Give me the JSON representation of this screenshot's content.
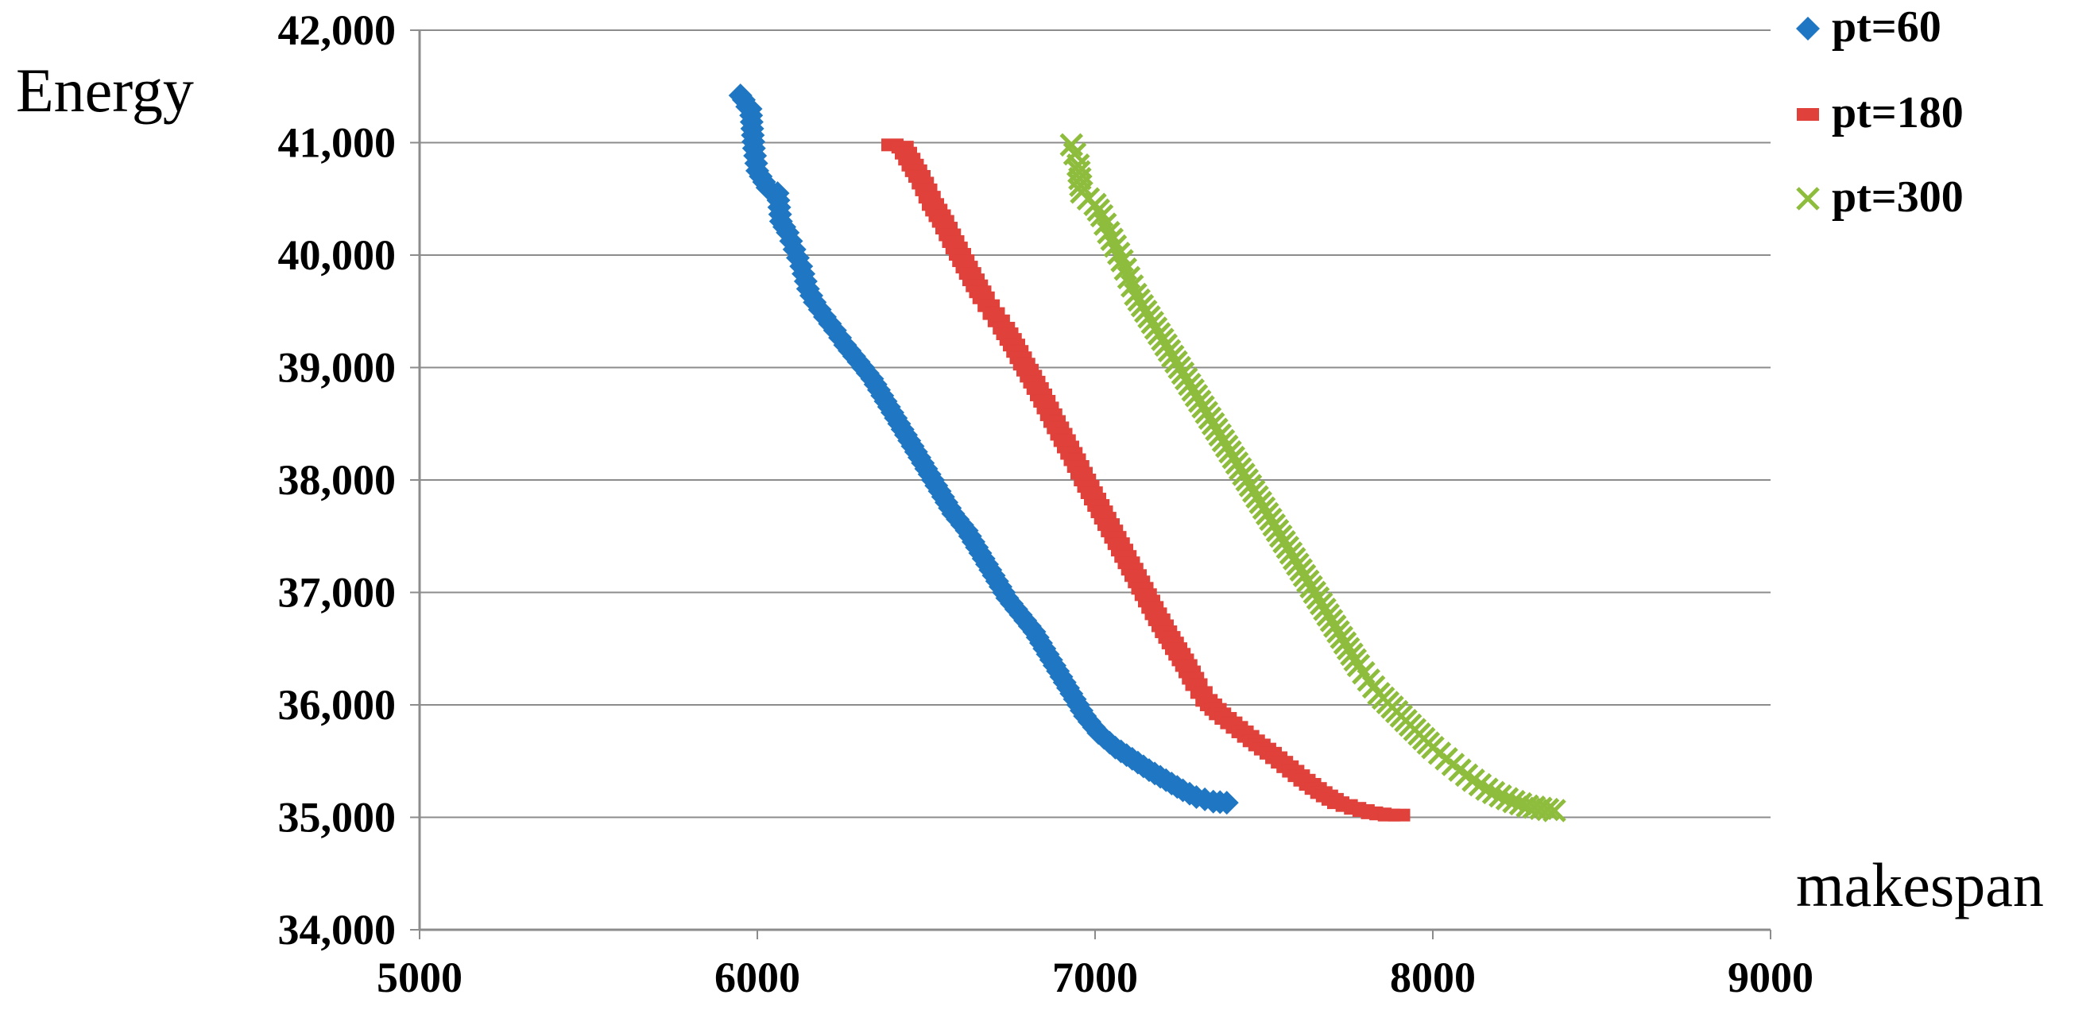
{
  "chart_data": {
    "type": "scatter",
    "xlabel": "makespan",
    "ylabel": "Energy",
    "xlim": [
      5000,
      9000
    ],
    "ylim": [
      34000,
      42000
    ],
    "x_ticks": [
      "5000",
      "6000",
      "7000",
      "8000",
      "9000"
    ],
    "y_ticks": [
      "34,000",
      "35,000",
      "36,000",
      "37,000",
      "38,000",
      "39,000",
      "40,000",
      "41,000",
      "42,000"
    ],
    "grid": "horizontal",
    "legend_position": "top-right",
    "series": [
      {
        "name": "pt=60",
        "marker": "diamond",
        "color": "#1f77c4",
        "points": [
          [
            5950,
            41420
          ],
          [
            5960,
            41380
          ],
          [
            5970,
            41320
          ],
          [
            5980,
            41300
          ],
          [
            5990,
            40950
          ],
          [
            6000,
            40750
          ],
          [
            6010,
            40700
          ],
          [
            6030,
            40600
          ],
          [
            6060,
            40550
          ],
          [
            6070,
            40300
          ],
          [
            6090,
            40200
          ],
          [
            6110,
            40050
          ],
          [
            6130,
            39900
          ],
          [
            6150,
            39700
          ],
          [
            6170,
            39580
          ],
          [
            6200,
            39450
          ],
          [
            6230,
            39330
          ],
          [
            6260,
            39200
          ],
          [
            6300,
            39050
          ],
          [
            6340,
            38900
          ],
          [
            6380,
            38700
          ],
          [
            6420,
            38500
          ],
          [
            6460,
            38300
          ],
          [
            6500,
            38100
          ],
          [
            6540,
            37900
          ],
          [
            6580,
            37700
          ],
          [
            6620,
            37550
          ],
          [
            6660,
            37350
          ],
          [
            6700,
            37150
          ],
          [
            6740,
            36950
          ],
          [
            6780,
            36800
          ],
          [
            6820,
            36650
          ],
          [
            6860,
            36450
          ],
          [
            6900,
            36250
          ],
          [
            6940,
            36050
          ],
          [
            6970,
            35900
          ],
          [
            7010,
            35750
          ],
          [
            7060,
            35620
          ],
          [
            7110,
            35520
          ],
          [
            7160,
            35420
          ],
          [
            7210,
            35330
          ],
          [
            7260,
            35240
          ],
          [
            7300,
            35180
          ],
          [
            7350,
            35140
          ],
          [
            7390,
            35130
          ]
        ]
      },
      {
        "name": "pt=180",
        "marker": "dash",
        "color": "#e0413a",
        "points": [
          [
            6400,
            40980
          ],
          [
            6430,
            40960
          ],
          [
            6460,
            40800
          ],
          [
            6480,
            40700
          ],
          [
            6500,
            40580
          ],
          [
            6520,
            40450
          ],
          [
            6550,
            40300
          ],
          [
            6580,
            40120
          ],
          [
            6610,
            39950
          ],
          [
            6640,
            39780
          ],
          [
            6670,
            39620
          ],
          [
            6700,
            39480
          ],
          [
            6730,
            39350
          ],
          [
            6760,
            39200
          ],
          [
            6790,
            39030
          ],
          [
            6820,
            38870
          ],
          [
            6850,
            38700
          ],
          [
            6880,
            38520
          ],
          [
            6910,
            38350
          ],
          [
            6940,
            38180
          ],
          [
            6970,
            38000
          ],
          [
            7000,
            37830
          ],
          [
            7030,
            37660
          ],
          [
            7060,
            37490
          ],
          [
            7090,
            37320
          ],
          [
            7120,
            37150
          ],
          [
            7150,
            36980
          ],
          [
            7180,
            36810
          ],
          [
            7210,
            36650
          ],
          [
            7240,
            36500
          ],
          [
            7270,
            36350
          ],
          [
            7300,
            36180
          ],
          [
            7330,
            36040
          ],
          [
            7370,
            35920
          ],
          [
            7420,
            35800
          ],
          [
            7470,
            35680
          ],
          [
            7520,
            35570
          ],
          [
            7570,
            35450
          ],
          [
            7620,
            35330
          ],
          [
            7670,
            35220
          ],
          [
            7720,
            35130
          ],
          [
            7770,
            35080
          ],
          [
            7820,
            35040
          ],
          [
            7870,
            35020
          ],
          [
            7900,
            35020
          ]
        ]
      },
      {
        "name": "pt=300",
        "marker": "cross",
        "color": "#8ebd3e",
        "points": [
          [
            6930,
            40980
          ],
          [
            6940,
            40900
          ],
          [
            6950,
            40800
          ],
          [
            6960,
            40560
          ],
          [
            6980,
            40500
          ],
          [
            7000,
            40450
          ],
          [
            7020,
            40350
          ],
          [
            7040,
            40200
          ],
          [
            7060,
            40080
          ],
          [
            7080,
            39950
          ],
          [
            7100,
            39800
          ],
          [
            7120,
            39650
          ],
          [
            7150,
            39500
          ],
          [
            7180,
            39350
          ],
          [
            7210,
            39200
          ],
          [
            7240,
            39050
          ],
          [
            7270,
            38900
          ],
          [
            7300,
            38750
          ],
          [
            7330,
            38600
          ],
          [
            7360,
            38450
          ],
          [
            7390,
            38300
          ],
          [
            7420,
            38150
          ],
          [
            7450,
            38000
          ],
          [
            7480,
            37850
          ],
          [
            7510,
            37700
          ],
          [
            7540,
            37550
          ],
          [
            7570,
            37400
          ],
          [
            7600,
            37250
          ],
          [
            7630,
            37100
          ],
          [
            7660,
            36950
          ],
          [
            7690,
            36800
          ],
          [
            7720,
            36650
          ],
          [
            7750,
            36500
          ],
          [
            7780,
            36350
          ],
          [
            7810,
            36220
          ],
          [
            7840,
            36100
          ],
          [
            7880,
            35980
          ],
          [
            7920,
            35860
          ],
          [
            7960,
            35740
          ],
          [
            8000,
            35620
          ],
          [
            8040,
            35520
          ],
          [
            8080,
            35420
          ],
          [
            8120,
            35330
          ],
          [
            8160,
            35250
          ],
          [
            8200,
            35190
          ],
          [
            8240,
            35140
          ],
          [
            8280,
            35100
          ],
          [
            8320,
            35080
          ],
          [
            8360,
            35060
          ]
        ]
      }
    ]
  }
}
